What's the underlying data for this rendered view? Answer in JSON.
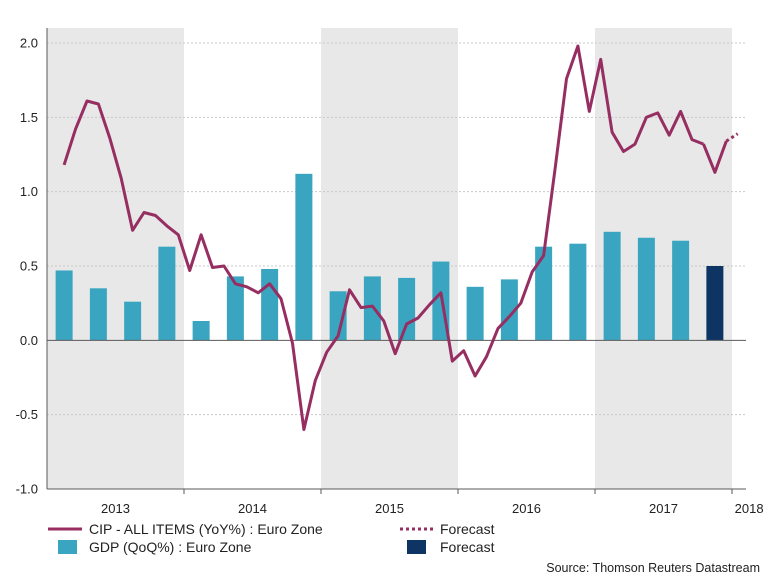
{
  "chart_data": {
    "type": "bar+line",
    "title": "",
    "xlabel": "",
    "ylabel": "",
    "ylim": [
      -1.0,
      2.0
    ],
    "yticks": [
      "2.0",
      "1.5",
      "1.0",
      "0.5",
      "0.0",
      "-0.5",
      "-1.0"
    ],
    "ytick_values": [
      2.0,
      1.5,
      1.0,
      0.5,
      0.0,
      -0.5,
      -1.0
    ],
    "grid": "horizontal-dotted",
    "year_labels": [
      "2013",
      "2014",
      "2015",
      "2016",
      "2017",
      "2018"
    ],
    "shaded_years": [
      "2013",
      "2015",
      "2017"
    ],
    "quarters": [
      "2013Q1",
      "2013Q2",
      "2013Q3",
      "2013Q4",
      "2014Q1",
      "2014Q2",
      "2014Q3",
      "2014Q4",
      "2015Q1",
      "2015Q2",
      "2015Q3",
      "2015Q4",
      "2016Q1",
      "2016Q2",
      "2016Q3",
      "2016Q4",
      "2017Q1",
      "2017Q2",
      "2017Q3",
      "2017Q4",
      "2018Q1"
    ],
    "gdp_series": {
      "name": "GDP (QoQ%) : Euro Zone",
      "values": [
        0.47,
        0.35,
        0.26,
        0.63,
        0.13,
        0.43,
        0.48,
        1.12,
        0.33,
        0.43,
        0.42,
        0.53,
        0.36,
        0.41,
        0.63,
        0.65,
        0.73,
        0.69,
        0.67
      ],
      "color": "#3aa5c0"
    },
    "gdp_forecast": {
      "name": "Forecast",
      "values": [
        0.5
      ],
      "color": "#0d3463"
    },
    "cpi_series": {
      "name": "CIP - ALL ITEMS (YoY%) : Euro Zone",
      "color": "#962e62",
      "x": [
        0.0,
        0.333,
        0.667,
        1.0,
        1.333,
        1.667,
        2.0,
        2.333,
        2.667,
        3.0,
        3.333,
        3.667,
        4.0,
        4.333,
        4.667,
        5.0,
        5.333,
        5.667,
        6.0,
        6.333,
        6.667,
        7.0,
        7.333,
        7.667,
        8.0,
        8.333,
        8.667,
        9.0,
        9.333,
        9.667,
        10.0,
        10.333,
        10.667,
        11.0,
        11.333,
        11.667,
        12.0,
        12.333,
        12.667,
        13.0,
        13.333,
        13.667,
        14.0,
        14.333,
        14.667,
        15.0,
        15.333,
        15.667,
        16.0,
        16.333,
        16.667,
        17.0,
        17.333,
        17.667,
        18.0,
        18.333,
        18.667
      ],
      "values": [
        1.18,
        1.42,
        1.61,
        1.59,
        1.36,
        1.09,
        0.74,
        0.86,
        0.84,
        0.77,
        0.71,
        0.47,
        0.71,
        0.49,
        0.5,
        0.38,
        0.36,
        0.32,
        0.38,
        0.28,
        -0.02,
        -0.6,
        -0.27,
        -0.08,
        0.03,
        0.34,
        0.22,
        0.23,
        0.13,
        -0.09,
        0.11,
        0.15,
        0.24,
        0.32,
        -0.14,
        -0.07,
        -0.24,
        -0.11,
        0.08,
        0.16,
        0.25,
        0.46,
        0.57,
        1.15,
        1.76,
        1.98,
        1.54,
        1.89,
        1.4,
        1.27,
        1.32,
        1.5,
        1.53,
        1.38,
        1.54,
        1.35,
        1.32
      ]
    },
    "cpi_forecast": {
      "name": "Forecast",
      "color": "#962e62",
      "x": [
        18.667,
        19.0,
        19.333
      ],
      "values": [
        1.32,
        1.13,
        1.34
      ]
    },
    "cpi_forecast_dotted": {
      "x": [
        19.333,
        19.667
      ],
      "values": [
        1.34,
        1.39
      ]
    }
  },
  "legend": {
    "cpi_label": "CIP - ALL ITEMS (YoY%) : Euro Zone",
    "cpi_forecast_label": "Forecast",
    "gdp_label": "GDP (QoQ%) : Euro Zone",
    "gdp_forecast_label": "Forecast"
  },
  "source": "Source: Thomson Reuters Datastream",
  "colors": {
    "shade": "#e8e8e8",
    "axis": "#5a5a5a",
    "grid": "#c8c8c8"
  }
}
